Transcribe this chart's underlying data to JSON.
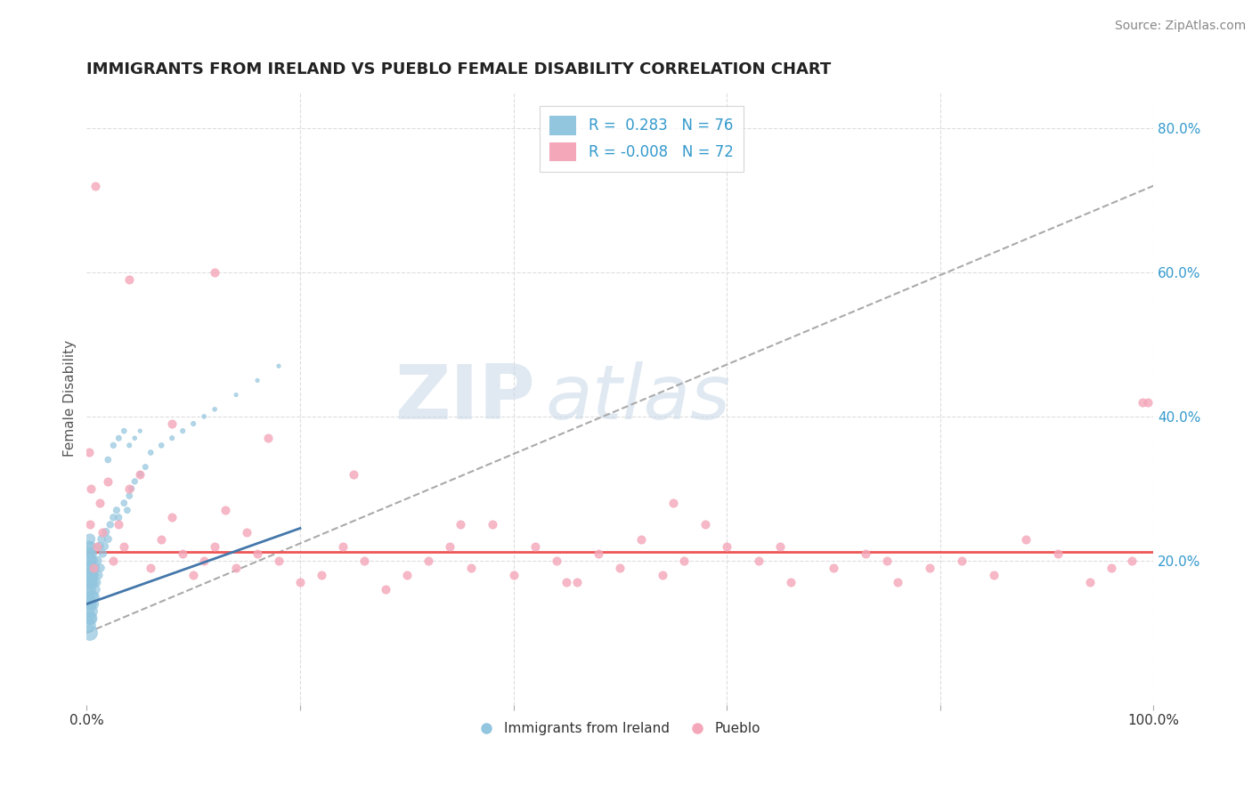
{
  "title": "IMMIGRANTS FROM IRELAND VS PUEBLO FEMALE DISABILITY CORRELATION CHART",
  "source": "Source: ZipAtlas.com",
  "ylabel": "Female Disability",
  "legend_label1": "Immigrants from Ireland",
  "legend_label2": "Pueblo",
  "R1": 0.283,
  "N1": 76,
  "R2": -0.008,
  "N2": 72,
  "color1": "#92C5DE",
  "color2": "#F4A7B9",
  "watermark_zip": "ZIP",
  "watermark_atlas": "atlas",
  "watermark_color_zip": "#C8D8E8",
  "watermark_color_atlas": "#C8D8E8",
  "xlim": [
    0.0,
    1.0
  ],
  "ylim": [
    0.0,
    0.85
  ],
  "blue_scatter_x": [
    0.001,
    0.001,
    0.001,
    0.001,
    0.001,
    0.001,
    0.001,
    0.002,
    0.002,
    0.002,
    0.002,
    0.002,
    0.002,
    0.002,
    0.002,
    0.003,
    0.003,
    0.003,
    0.003,
    0.003,
    0.003,
    0.003,
    0.004,
    0.004,
    0.004,
    0.004,
    0.004,
    0.005,
    0.005,
    0.005,
    0.005,
    0.006,
    0.006,
    0.006,
    0.007,
    0.007,
    0.008,
    0.008,
    0.009,
    0.01,
    0.011,
    0.012,
    0.013,
    0.014,
    0.015,
    0.017,
    0.018,
    0.02,
    0.022,
    0.025,
    0.028,
    0.03,
    0.035,
    0.038,
    0.04,
    0.042,
    0.045,
    0.05,
    0.055,
    0.06,
    0.07,
    0.08,
    0.09,
    0.1,
    0.11,
    0.12,
    0.14,
    0.16,
    0.18,
    0.02,
    0.025,
    0.03,
    0.035,
    0.04,
    0.045,
    0.05
  ],
  "blue_scatter_y": [
    0.12,
    0.14,
    0.15,
    0.16,
    0.17,
    0.18,
    0.19,
    0.11,
    0.13,
    0.15,
    0.17,
    0.19,
    0.2,
    0.21,
    0.22,
    0.1,
    0.12,
    0.14,
    0.16,
    0.18,
    0.21,
    0.23,
    0.12,
    0.14,
    0.17,
    0.2,
    0.22,
    0.13,
    0.15,
    0.18,
    0.21,
    0.14,
    0.17,
    0.2,
    0.15,
    0.18,
    0.16,
    0.19,
    0.17,
    0.2,
    0.18,
    0.22,
    0.19,
    0.23,
    0.21,
    0.22,
    0.24,
    0.23,
    0.25,
    0.26,
    0.27,
    0.26,
    0.28,
    0.27,
    0.29,
    0.3,
    0.31,
    0.32,
    0.33,
    0.35,
    0.36,
    0.37,
    0.38,
    0.39,
    0.4,
    0.41,
    0.43,
    0.45,
    0.47,
    0.34,
    0.36,
    0.37,
    0.38,
    0.36,
    0.37,
    0.38
  ],
  "blue_scatter_sizes": [
    80,
    60,
    70,
    90,
    100,
    80,
    60,
    120,
    80,
    70,
    90,
    100,
    110,
    80,
    70,
    150,
    100,
    80,
    90,
    120,
    80,
    70,
    100,
    80,
    90,
    70,
    60,
    80,
    90,
    70,
    60,
    80,
    70,
    60,
    70,
    60,
    60,
    50,
    50,
    50,
    45,
    45,
    40,
    40,
    40,
    35,
    35,
    35,
    30,
    30,
    28,
    28,
    25,
    25,
    25,
    22,
    22,
    20,
    20,
    18,
    18,
    15,
    15,
    15,
    12,
    12,
    10,
    10,
    10,
    25,
    22,
    20,
    18,
    15,
    12,
    10
  ],
  "pink_scatter_x": [
    0.002,
    0.003,
    0.004,
    0.006,
    0.008,
    0.01,
    0.012,
    0.015,
    0.02,
    0.025,
    0.03,
    0.035,
    0.04,
    0.05,
    0.06,
    0.07,
    0.08,
    0.09,
    0.1,
    0.11,
    0.12,
    0.13,
    0.14,
    0.15,
    0.16,
    0.18,
    0.2,
    0.22,
    0.24,
    0.26,
    0.28,
    0.3,
    0.32,
    0.34,
    0.36,
    0.38,
    0.4,
    0.42,
    0.44,
    0.46,
    0.48,
    0.5,
    0.52,
    0.54,
    0.56,
    0.58,
    0.6,
    0.63,
    0.66,
    0.7,
    0.73,
    0.76,
    0.79,
    0.82,
    0.85,
    0.88,
    0.91,
    0.94,
    0.96,
    0.98,
    0.99,
    0.995,
    0.04,
    0.12,
    0.08,
    0.55,
    0.65,
    0.75,
    0.45,
    0.35,
    0.25,
    0.17
  ],
  "pink_scatter_y": [
    0.35,
    0.25,
    0.3,
    0.19,
    0.72,
    0.22,
    0.28,
    0.24,
    0.31,
    0.2,
    0.25,
    0.22,
    0.3,
    0.32,
    0.19,
    0.23,
    0.26,
    0.21,
    0.18,
    0.2,
    0.22,
    0.27,
    0.19,
    0.24,
    0.21,
    0.2,
    0.17,
    0.18,
    0.22,
    0.2,
    0.16,
    0.18,
    0.2,
    0.22,
    0.19,
    0.25,
    0.18,
    0.22,
    0.2,
    0.17,
    0.21,
    0.19,
    0.23,
    0.18,
    0.2,
    0.25,
    0.22,
    0.2,
    0.17,
    0.19,
    0.21,
    0.17,
    0.19,
    0.2,
    0.18,
    0.23,
    0.21,
    0.17,
    0.19,
    0.2,
    0.42,
    0.42,
    0.59,
    0.6,
    0.39,
    0.28,
    0.22,
    0.2,
    0.17,
    0.25,
    0.32,
    0.37
  ],
  "trendline_blue_x0": 0.0,
  "trendline_blue_y0": 0.14,
  "trendline_blue_x1": 0.2,
  "trendline_blue_y1": 0.245,
  "trendline_dashed_x0": 0.0,
  "trendline_dashed_y0": 0.1,
  "trendline_dashed_x1": 1.0,
  "trendline_dashed_y1": 0.72,
  "trendline_pink_y": 0.212
}
